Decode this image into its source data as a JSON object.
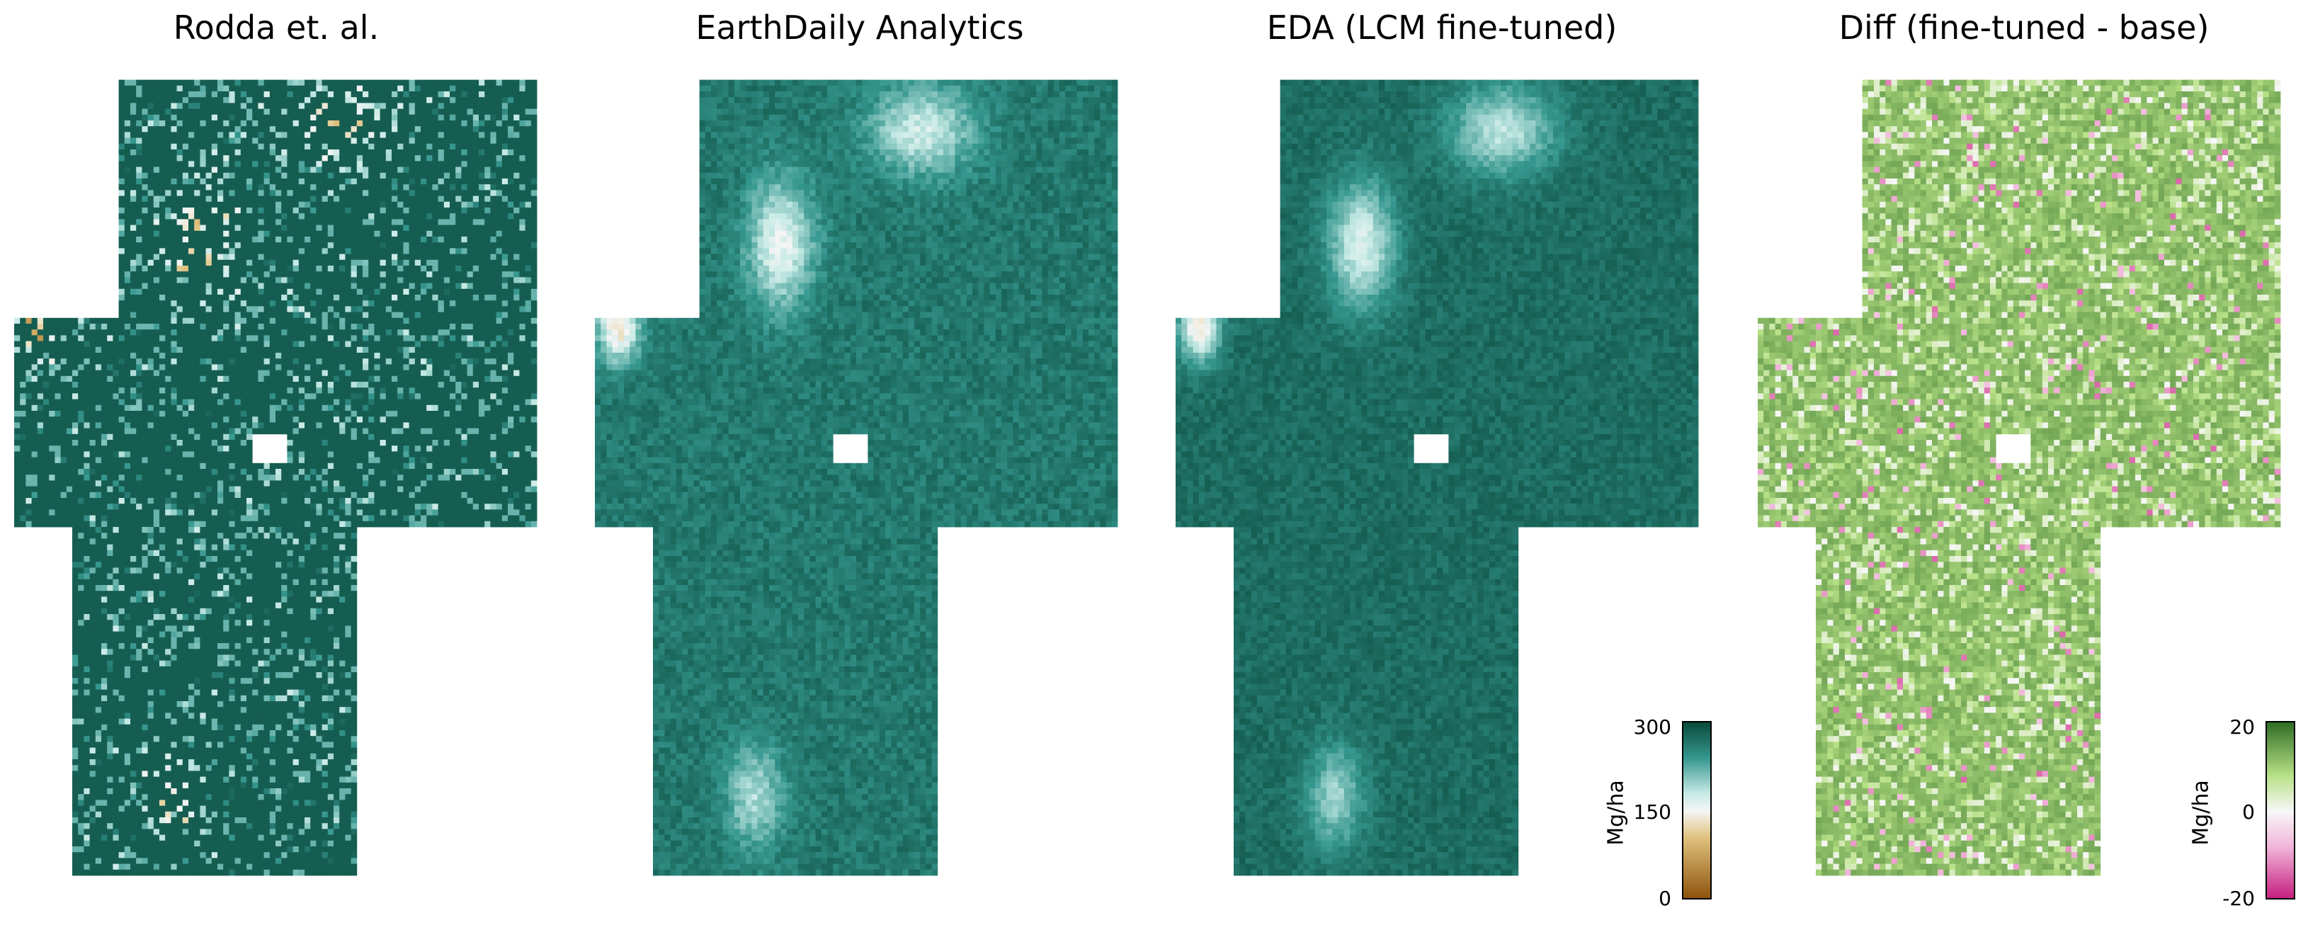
{
  "chart_data": [
    {
      "type": "heatmap",
      "title": "Rodda et. al.",
      "colormap": "BrBG",
      "vmin": 0,
      "vmax": 300,
      "unit": "Mg/ha"
    },
    {
      "type": "heatmap",
      "title": "EarthDaily Analytics",
      "colormap": "BrBG",
      "vmin": 0,
      "vmax": 300,
      "unit": "Mg/ha"
    },
    {
      "type": "heatmap",
      "title": "EDA (LCM fine-tuned)",
      "colormap": "BrBG",
      "vmin": 0,
      "vmax": 300,
      "unit": "Mg/ha",
      "colorbar": {
        "label": "Mg/ha",
        "ticks": [
          "300",
          "150",
          "0"
        ]
      }
    },
    {
      "type": "heatmap",
      "title": "Diff (fine-tuned - base)",
      "colormap": "PiYG",
      "vmin": -20,
      "vmax": 20,
      "unit": "Mg/ha",
      "colorbar": {
        "label": "Mg/ha",
        "ticks": [
          "20",
          "0",
          "-20"
        ]
      }
    }
  ],
  "colors": {
    "brbg_dark_teal": "#0b4a3c",
    "brbg_mid_teal": "#35978f",
    "brbg_light_teal": "#c7eae5",
    "brbg_white": "#f5f5f5",
    "brbg_tan": "#dfc27d",
    "brbg_brown": "#8c510a",
    "piyg_green": "#2f6d26",
    "piyg_light_green": "#b8e186",
    "piyg_white": "#f7f7f7",
    "piyg_pink": "#f1b6da",
    "piyg_magenta": "#c51b7d"
  }
}
